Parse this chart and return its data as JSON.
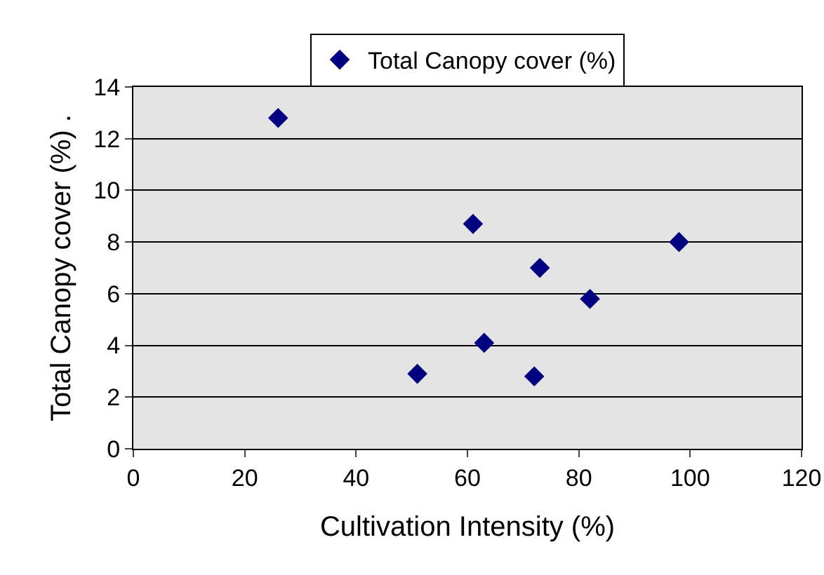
{
  "chart_data": {
    "type": "scatter",
    "xlabel": "Cultivation Intensity (%)",
    "ylabel": "Total Canopy cover (%) .",
    "x": [
      26,
      61,
      73,
      98,
      82,
      63,
      51,
      72
    ],
    "series": [
      {
        "name": "Total Canopy cover (%)",
        "color": "#000080",
        "values": [
          12.8,
          8.7,
          7.0,
          8.0,
          5.8,
          4.1,
          2.9,
          2.8
        ]
      }
    ],
    "xlim": [
      0,
      120
    ],
    "xticks": [
      0,
      20,
      40,
      60,
      80,
      100,
      120
    ],
    "ylim": [
      0,
      14
    ],
    "yticks": [
      0,
      2,
      4,
      6,
      8,
      10,
      12,
      14
    ],
    "grid": "y",
    "legend": "top",
    "marker": "diamond"
  }
}
